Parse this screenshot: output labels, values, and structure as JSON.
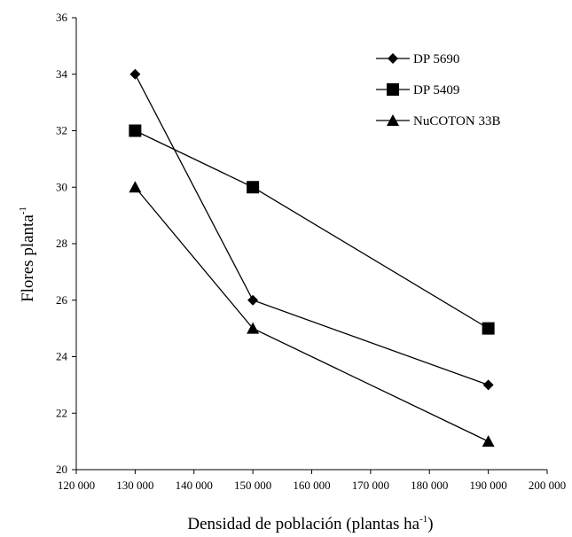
{
  "chart_data": {
    "type": "line",
    "title": "",
    "xlabel": {
      "base": "Densidad de población (plantas ha",
      "sup": "-1",
      "tail": ")"
    },
    "ylabel": {
      "base": "Flores planta",
      "sup": "-1"
    },
    "xlim": [
      120000,
      200000
    ],
    "ylim": [
      20,
      36
    ],
    "x_ticks": [
      120000,
      130000,
      140000,
      150000,
      160000,
      170000,
      180000,
      190000,
      200000
    ],
    "x_tick_labels": [
      "120 000",
      "130 000",
      "140 000",
      "150 000",
      "160 000",
      "170 000",
      "180 000",
      "190 000",
      "200 000"
    ],
    "y_ticks": [
      20,
      22,
      24,
      26,
      28,
      30,
      32,
      34,
      36
    ],
    "y_tick_labels": [
      "20",
      "22",
      "24",
      "26",
      "28",
      "30",
      "32",
      "34",
      "36"
    ],
    "grid": false,
    "legend_position": "top-right",
    "x": [
      130000,
      150000,
      190000
    ],
    "series": [
      {
        "name": "DP 5690",
        "marker": "diamond",
        "values": [
          34,
          26,
          23
        ]
      },
      {
        "name": "DP 5409",
        "marker": "square",
        "values": [
          32,
          30,
          25
        ]
      },
      {
        "name": "NuCOTON 33B",
        "marker": "triangle",
        "values": [
          30,
          25,
          21
        ]
      }
    ],
    "colors": {
      "line": "#000000",
      "marker": "#000000",
      "axis": "#000000"
    }
  }
}
